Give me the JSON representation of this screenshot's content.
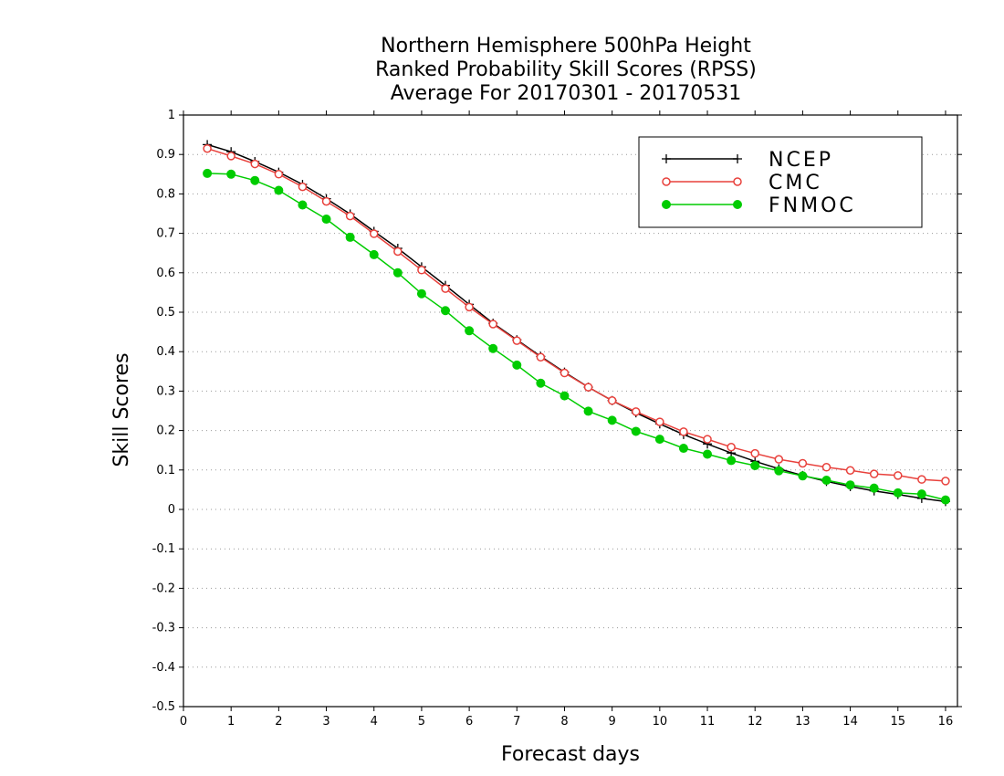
{
  "chart_data": {
    "type": "line",
    "title_lines": [
      "Northern Hemisphere 500hPa Height",
      "Ranked Probability Skill Scores (RPSS)",
      "Average For 20170301 - 20170531"
    ],
    "xlabel": "Forecast days",
    "ylabel": "Skill Scores",
    "xlim": [
      0,
      16.25
    ],
    "ylim": [
      -0.5,
      1
    ],
    "x_ticks": [
      0,
      1,
      2,
      3,
      4,
      5,
      6,
      7,
      8,
      9,
      10,
      11,
      12,
      13,
      14,
      15,
      16
    ],
    "y_ticks": [
      -0.5,
      -0.4,
      -0.3,
      -0.2,
      -0.1,
      0,
      0.1,
      0.2,
      0.3,
      0.4,
      0.5,
      0.6,
      0.7,
      0.8,
      0.9,
      1
    ],
    "y_tick_labels": [
      "-0.5",
      "-0.4",
      "-0.3",
      "-0.2",
      "-0.1",
      "0",
      "0.1",
      "0.2",
      "0.3",
      "0.4",
      "0.5",
      "0.6",
      "0.7",
      "0.8",
      "0.9",
      "1"
    ],
    "grid": "horizontal dotted",
    "legend_position": "top-right",
    "x": [
      0.5,
      1,
      1.5,
      2,
      2.5,
      3,
      3.5,
      4,
      4.5,
      5,
      5.5,
      6,
      6.5,
      7,
      7.5,
      8,
      8.5,
      9,
      9.5,
      10,
      10.5,
      11,
      11.5,
      12,
      12.5,
      13,
      13.5,
      14,
      14.5,
      15,
      15.5,
      16
    ],
    "series": [
      {
        "name": "NCEP",
        "color": "#000000",
        "marker": "plus",
        "values": [
          0.925,
          0.907,
          0.882,
          0.855,
          0.824,
          0.788,
          0.749,
          0.705,
          0.662,
          0.615,
          0.568,
          0.52,
          0.472,
          0.43,
          0.388,
          0.348,
          0.31,
          0.276,
          0.245,
          0.217,
          0.19,
          0.166,
          0.143,
          0.122,
          0.103,
          0.086,
          0.071,
          0.058,
          0.047,
          0.038,
          0.028,
          0.02
        ]
      },
      {
        "name": "CMC",
        "color": "#e8413c",
        "marker": "open-circle",
        "values": [
          0.915,
          0.896,
          0.876,
          0.85,
          0.818,
          0.781,
          0.744,
          0.699,
          0.654,
          0.607,
          0.56,
          0.513,
          0.47,
          0.428,
          0.386,
          0.346,
          0.31,
          0.276,
          0.248,
          0.222,
          0.197,
          0.178,
          0.158,
          0.142,
          0.127,
          0.117,
          0.107,
          0.099,
          0.09,
          0.086,
          0.076,
          0.072
        ]
      },
      {
        "name": "FNMOC",
        "color": "#00cc00",
        "marker": "filled-circle",
        "values": [
          0.852,
          0.85,
          0.834,
          0.809,
          0.772,
          0.736,
          0.69,
          0.646,
          0.6,
          0.547,
          0.504,
          0.453,
          0.408,
          0.366,
          0.32,
          0.288,
          0.249,
          0.226,
          0.198,
          0.178,
          0.155,
          0.14,
          0.124,
          0.111,
          0.098,
          0.085,
          0.074,
          0.062,
          0.054,
          0.042,
          0.039,
          0.024
        ]
      }
    ]
  }
}
